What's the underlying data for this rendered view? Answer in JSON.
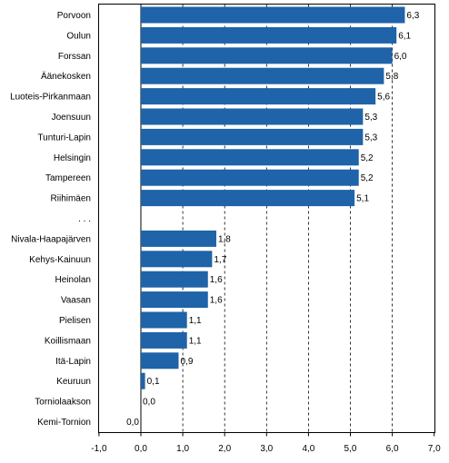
{
  "chart_data": {
    "type": "bar",
    "orientation": "horizontal",
    "title": "",
    "xlabel": "",
    "ylabel": "",
    "xlim": [
      -1,
      7
    ],
    "x_ticks": [
      "-1,0",
      "0,0",
      "1,0",
      "2,0",
      "3,0",
      "4,0",
      "5,0",
      "6,0",
      "7,0"
    ],
    "x_tick_values": [
      -1,
      0,
      1,
      2,
      3,
      4,
      5,
      6,
      7
    ],
    "grid": "vertical dashed",
    "bar_color": "#1f63a8",
    "categories": [
      "Porvoon",
      "Oulun",
      "Forssan",
      "Äänekosken",
      "Luoteis-Pirkanmaan",
      "Joensuun",
      "Tunturi-Lapin",
      "Helsingin",
      "Tampereen",
      "Riihimäen",
      ". . .",
      "Nivala-Haapajärven",
      "Kehys-Kainuun",
      "Heinolan",
      "Vaasan",
      "Pielisen",
      "Koillismaan",
      "Itä-Lapin",
      "Keuruun",
      "Torniolaakson",
      "Kemi-Tornion"
    ],
    "values": [
      6.3,
      6.1,
      6.0,
      5.8,
      5.6,
      5.3,
      5.3,
      5.2,
      5.2,
      5.1,
      null,
      1.8,
      1.7,
      1.6,
      1.6,
      1.1,
      1.1,
      0.9,
      0.1,
      0.0,
      0.0
    ],
    "value_labels": [
      "6,3",
      "6,1",
      "6,0",
      "5,8",
      "5,6",
      "5,3",
      "5,3",
      "5,2",
      "5,2",
      "5,1",
      "",
      "1,8",
      "1,7",
      "1,6",
      "1,6",
      "1,1",
      "1,1",
      "0,9",
      "0,1",
      "0,0",
      "0,0"
    ]
  }
}
